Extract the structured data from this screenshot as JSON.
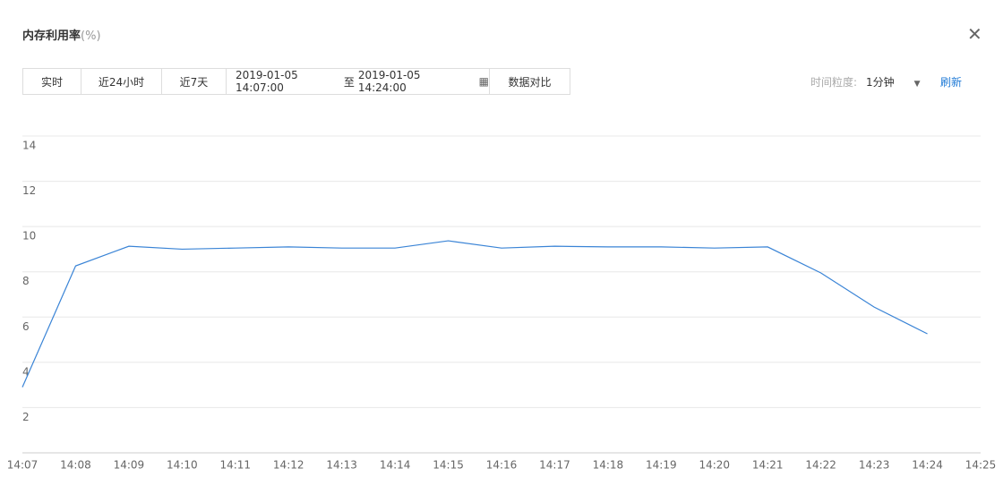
{
  "header": {
    "title": "内存利用率",
    "unit": "(%)"
  },
  "toolbar": {
    "buttons": [
      "实时",
      "近24小时",
      "近7天"
    ],
    "range_start": "2019-01-05 14:07:00",
    "range_sep": "至",
    "range_end": "2019-01-05 14:24:00",
    "compare": "数据对比",
    "granularity_label": "时间粒度:",
    "granularity": "1分钟",
    "refresh": "刷新"
  },
  "chart_data": {
    "type": "line",
    "color": "#3a84d6",
    "grid": true,
    "categories": [
      "14:07",
      "14:08",
      "14:09",
      "14:10",
      "14:11",
      "14:12",
      "14:13",
      "14:14",
      "14:15",
      "14:16",
      "14:17",
      "14:18",
      "14:19",
      "14:20",
      "14:21",
      "14:22",
      "14:23",
      "14:24",
      "14:25"
    ],
    "values": [
      2.9,
      8.26,
      9.13,
      9.0,
      9.05,
      9.1,
      9.05,
      9.05,
      9.37,
      9.05,
      9.13,
      9.1,
      9.1,
      9.05,
      9.1,
      7.95,
      6.44,
      5.26,
      null
    ],
    "ylim": [
      0,
      14
    ],
    "yticks": [
      2,
      4,
      6,
      8,
      10,
      12,
      14
    ]
  }
}
